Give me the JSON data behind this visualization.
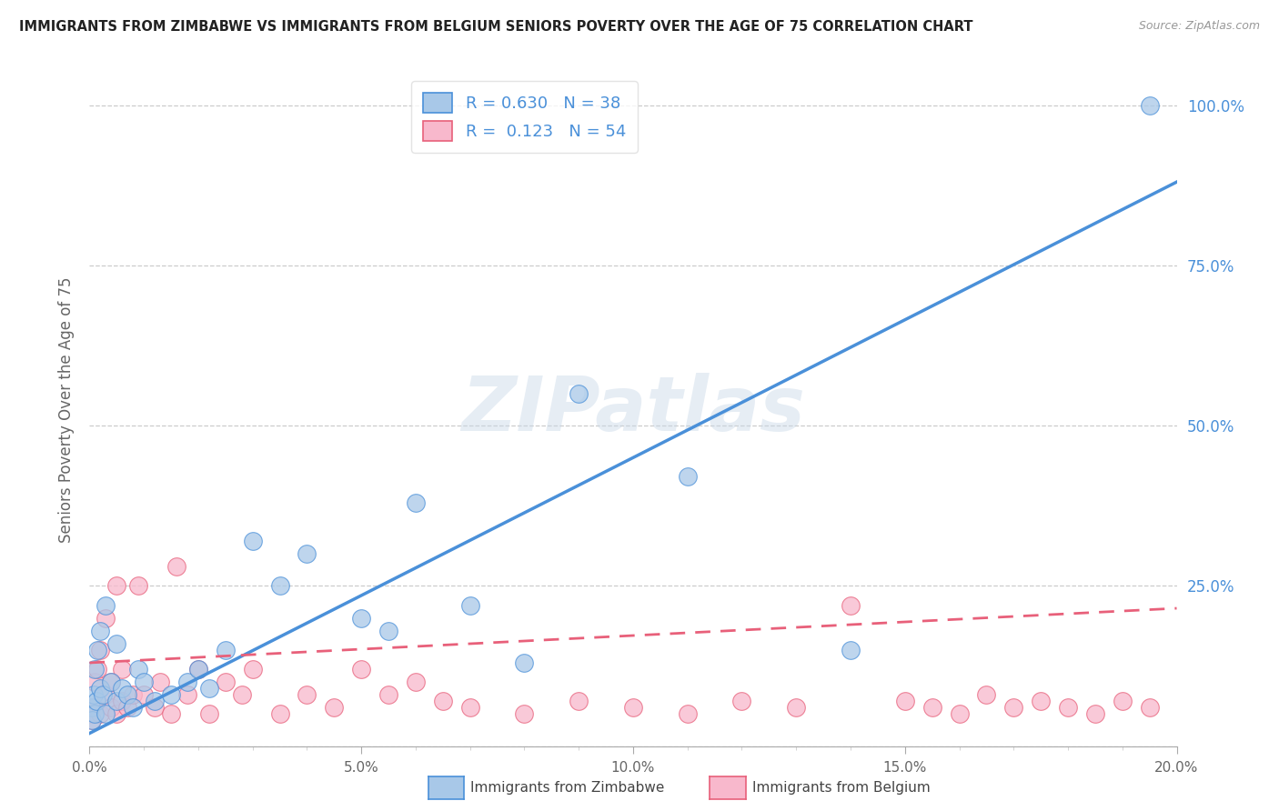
{
  "title": "IMMIGRANTS FROM ZIMBABWE VS IMMIGRANTS FROM BELGIUM SENIORS POVERTY OVER THE AGE OF 75 CORRELATION CHART",
  "source": "Source: ZipAtlas.com",
  "ylabel": "Seniors Poverty Over the Age of 75",
  "r_zimbabwe": 0.63,
  "n_zimbabwe": 38,
  "r_belgium": 0.123,
  "n_belgium": 54,
  "color_zimbabwe": "#a8c8e8",
  "color_belgium": "#f8b8cc",
  "line_color_zimbabwe": "#4a90d9",
  "line_color_belgium": "#e8607a",
  "watermark": "ZIPatlas",
  "background_color": "#ffffff",
  "trendline_zim_x0": 0.0,
  "trendline_zim_y0": 0.02,
  "trendline_zim_x1": 0.2,
  "trendline_zim_y1": 0.88,
  "trendline_bel_x0": 0.0,
  "trendline_bel_y0": 0.13,
  "trendline_bel_x1": 0.2,
  "trendline_bel_y1": 0.215,
  "zimbabwe_x": [
    0.0003,
    0.0005,
    0.0007,
    0.001,
    0.001,
    0.0012,
    0.0015,
    0.002,
    0.002,
    0.0025,
    0.003,
    0.003,
    0.004,
    0.005,
    0.005,
    0.006,
    0.007,
    0.008,
    0.009,
    0.01,
    0.012,
    0.015,
    0.018,
    0.02,
    0.022,
    0.025,
    0.03,
    0.035,
    0.04,
    0.05,
    0.055,
    0.06,
    0.07,
    0.08,
    0.09,
    0.11,
    0.14,
    0.195
  ],
  "zimbabwe_y": [
    0.06,
    0.04,
    0.08,
    0.05,
    0.12,
    0.07,
    0.15,
    0.09,
    0.18,
    0.08,
    0.05,
    0.22,
    0.1,
    0.07,
    0.16,
    0.09,
    0.08,
    0.06,
    0.12,
    0.1,
    0.07,
    0.08,
    0.1,
    0.12,
    0.09,
    0.15,
    0.32,
    0.25,
    0.3,
    0.2,
    0.18,
    0.38,
    0.22,
    0.13,
    0.55,
    0.42,
    0.15,
    1.0
  ],
  "belgium_x": [
    0.0003,
    0.0005,
    0.001,
    0.001,
    0.0015,
    0.002,
    0.002,
    0.003,
    0.003,
    0.004,
    0.004,
    0.005,
    0.005,
    0.006,
    0.006,
    0.007,
    0.008,
    0.009,
    0.01,
    0.012,
    0.013,
    0.015,
    0.016,
    0.018,
    0.02,
    0.022,
    0.025,
    0.028,
    0.03,
    0.035,
    0.04,
    0.045,
    0.05,
    0.055,
    0.06,
    0.065,
    0.07,
    0.08,
    0.09,
    0.1,
    0.11,
    0.12,
    0.13,
    0.14,
    0.15,
    0.155,
    0.16,
    0.165,
    0.17,
    0.175,
    0.18,
    0.185,
    0.19,
    0.195
  ],
  "belgium_y": [
    0.05,
    0.04,
    0.1,
    0.06,
    0.12,
    0.05,
    0.15,
    0.08,
    0.2,
    0.06,
    0.1,
    0.05,
    0.25,
    0.07,
    0.12,
    0.06,
    0.08,
    0.25,
    0.08,
    0.06,
    0.1,
    0.05,
    0.28,
    0.08,
    0.12,
    0.05,
    0.1,
    0.08,
    0.12,
    0.05,
    0.08,
    0.06,
    0.12,
    0.08,
    0.1,
    0.07,
    0.06,
    0.05,
    0.07,
    0.06,
    0.05,
    0.07,
    0.06,
    0.22,
    0.07,
    0.06,
    0.05,
    0.08,
    0.06,
    0.07,
    0.06,
    0.05,
    0.07,
    0.06
  ],
  "xlim": [
    0,
    0.2
  ],
  "ylim": [
    0,
    1.05
  ],
  "x_ticks": [
    0.0,
    0.05,
    0.1,
    0.15,
    0.2
  ],
  "x_labels": [
    "0.0%",
    "5.0%",
    "10.0%",
    "15.0%",
    "20.0%"
  ],
  "y_ticks": [
    0.0,
    0.25,
    0.5,
    0.75,
    1.0
  ],
  "y_labels": [
    "",
    "25.0%",
    "50.0%",
    "75.0%",
    "100.0%"
  ]
}
